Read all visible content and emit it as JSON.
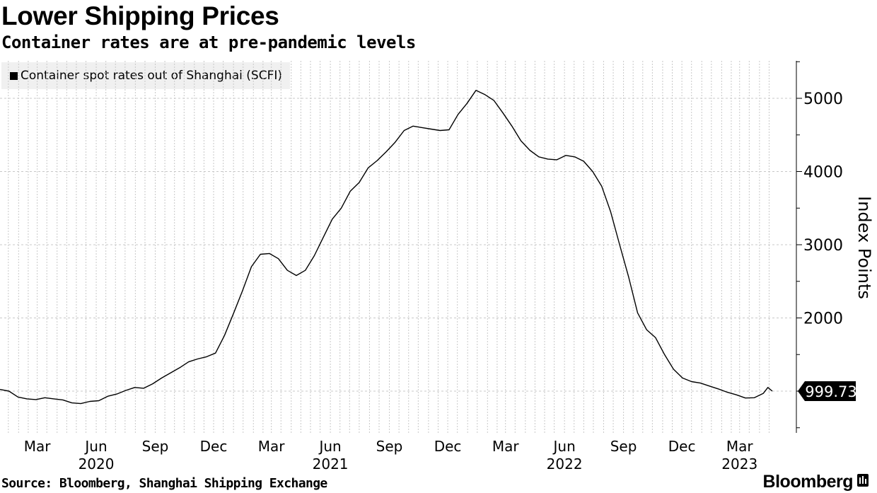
{
  "header": {
    "title": "Lower Shipping Prices",
    "subtitle": "Container rates are at pre-pandemic levels"
  },
  "footer": {
    "source": "Source: Bloomberg, Shanghai Shipping Exchange",
    "brand": "Bloomberg"
  },
  "icons": {
    "brand": "bloomberg-terminal-icon"
  },
  "colors": {
    "line": "#000000",
    "grid": "#c8c8c8",
    "legend_bg": "#f0f0f0",
    "last_value_bg": "#000000"
  },
  "chart_data": {
    "type": "line",
    "title": "Lower Shipping Prices",
    "subtitle": "Container rates are at pre-pandemic levels",
    "ylabel": "Index Points",
    "y_axis_position": "right",
    "ylim": [
      500,
      5500
    ],
    "yticks": [
      2000,
      3000,
      4000,
      5000
    ],
    "ytick_labels": [
      "2000",
      "3000",
      "4000",
      "5000"
    ],
    "xlim": [
      "2020-01-03",
      "2023-04-21"
    ],
    "x_ticks": [
      {
        "date": "2020-03-01",
        "label": "Mar"
      },
      {
        "date": "2020-06-01",
        "label": "Jun"
      },
      {
        "date": "2020-09-01",
        "label": "Sep"
      },
      {
        "date": "2020-12-01",
        "label": "Dec"
      },
      {
        "date": "2021-03-01",
        "label": "Mar"
      },
      {
        "date": "2021-06-01",
        "label": "Jun"
      },
      {
        "date": "2021-09-01",
        "label": "Sep"
      },
      {
        "date": "2021-12-01",
        "label": "Dec"
      },
      {
        "date": "2022-03-01",
        "label": "Mar"
      },
      {
        "date": "2022-06-01",
        "label": "Jun"
      },
      {
        "date": "2022-09-01",
        "label": "Sep"
      },
      {
        "date": "2022-12-01",
        "label": "Dec"
      },
      {
        "date": "2023-03-01",
        "label": "Mar"
      }
    ],
    "year_labels": [
      {
        "date": "2020-06-01",
        "label": "2020"
      },
      {
        "date": "2021-06-01",
        "label": "2021"
      },
      {
        "date": "2022-06-01",
        "label": "2022"
      },
      {
        "date": "2023-03-01",
        "label": "2023"
      }
    ],
    "grid": true,
    "legend_position": "top-left",
    "last_value_label": "999.73",
    "series": [
      {
        "name": "Container spot rates out of Shanghai (SCFI)",
        "points": [
          [
            "2020-01-03",
            1023
          ],
          [
            "2020-01-17",
            1000
          ],
          [
            "2020-01-31",
            920
          ],
          [
            "2020-02-14",
            895
          ],
          [
            "2020-02-28",
            885
          ],
          [
            "2020-03-13",
            910
          ],
          [
            "2020-03-27",
            895
          ],
          [
            "2020-04-10",
            880
          ],
          [
            "2020-04-24",
            840
          ],
          [
            "2020-05-08",
            830
          ],
          [
            "2020-05-22",
            860
          ],
          [
            "2020-06-05",
            870
          ],
          [
            "2020-06-19",
            930
          ],
          [
            "2020-07-03",
            960
          ],
          [
            "2020-07-17",
            1010
          ],
          [
            "2020-07-31",
            1050
          ],
          [
            "2020-08-14",
            1040
          ],
          [
            "2020-08-28",
            1100
          ],
          [
            "2020-09-11",
            1180
          ],
          [
            "2020-09-25",
            1250
          ],
          [
            "2020-10-09",
            1320
          ],
          [
            "2020-10-23",
            1400
          ],
          [
            "2020-11-06",
            1440
          ],
          [
            "2020-11-20",
            1470
          ],
          [
            "2020-12-04",
            1520
          ],
          [
            "2020-12-18",
            1760
          ],
          [
            "2021-01-01",
            2060
          ],
          [
            "2021-01-15",
            2370
          ],
          [
            "2021-01-29",
            2700
          ],
          [
            "2021-02-12",
            2870
          ],
          [
            "2021-02-26",
            2880
          ],
          [
            "2021-03-12",
            2810
          ],
          [
            "2021-03-26",
            2650
          ],
          [
            "2021-04-09",
            2580
          ],
          [
            "2021-04-23",
            2650
          ],
          [
            "2021-05-07",
            2850
          ],
          [
            "2021-05-21",
            3100
          ],
          [
            "2021-06-04",
            3350
          ],
          [
            "2021-06-18",
            3500
          ],
          [
            "2021-07-02",
            3730
          ],
          [
            "2021-07-16",
            3850
          ],
          [
            "2021-07-30",
            4050
          ],
          [
            "2021-08-13",
            4150
          ],
          [
            "2021-08-27",
            4270
          ],
          [
            "2021-09-10",
            4400
          ],
          [
            "2021-09-24",
            4560
          ],
          [
            "2021-10-08",
            4620
          ],
          [
            "2021-10-22",
            4600
          ],
          [
            "2021-11-05",
            4580
          ],
          [
            "2021-11-19",
            4560
          ],
          [
            "2021-12-03",
            4570
          ],
          [
            "2021-12-17",
            4780
          ],
          [
            "2021-12-31",
            4930
          ],
          [
            "2022-01-14",
            5109
          ],
          [
            "2022-01-28",
            5050
          ],
          [
            "2022-02-11",
            4970
          ],
          [
            "2022-02-25",
            4800
          ],
          [
            "2022-03-11",
            4620
          ],
          [
            "2022-03-25",
            4420
          ],
          [
            "2022-04-08",
            4290
          ],
          [
            "2022-04-22",
            4200
          ],
          [
            "2022-05-06",
            4170
          ],
          [
            "2022-05-20",
            4160
          ],
          [
            "2022-06-03",
            4220
          ],
          [
            "2022-06-17",
            4200
          ],
          [
            "2022-07-01",
            4140
          ],
          [
            "2022-07-15",
            4000
          ],
          [
            "2022-07-29",
            3800
          ],
          [
            "2022-08-12",
            3450
          ],
          [
            "2022-08-26",
            3000
          ],
          [
            "2022-09-09",
            2560
          ],
          [
            "2022-09-23",
            2070
          ],
          [
            "2022-10-07",
            1840
          ],
          [
            "2022-10-21",
            1730
          ],
          [
            "2022-11-04",
            1500
          ],
          [
            "2022-11-18",
            1300
          ],
          [
            "2022-12-02",
            1180
          ],
          [
            "2022-12-16",
            1130
          ],
          [
            "2022-12-30",
            1110
          ],
          [
            "2023-01-13",
            1070
          ],
          [
            "2023-01-27",
            1030
          ],
          [
            "2023-02-10",
            985
          ],
          [
            "2023-02-24",
            950
          ],
          [
            "2023-03-10",
            906
          ],
          [
            "2023-03-24",
            910
          ],
          [
            "2023-04-07",
            970
          ],
          [
            "2023-04-14",
            1050
          ],
          [
            "2023-04-21",
            999.73
          ]
        ]
      }
    ]
  }
}
